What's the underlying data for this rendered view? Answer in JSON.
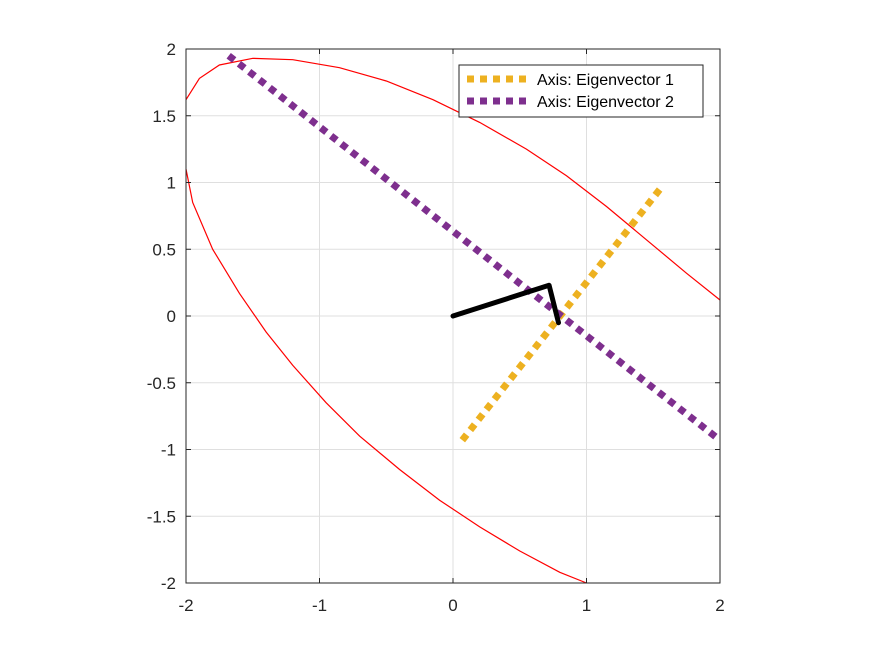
{
  "chart_data": {
    "type": "line",
    "title": "",
    "xlabel": "",
    "ylabel": "",
    "xlim": [
      -2,
      2
    ],
    "ylim": [
      -2,
      2
    ],
    "xticks": [
      -2,
      -1,
      0,
      1,
      2
    ],
    "yticks": [
      -2,
      -1.5,
      -1,
      -0.5,
      0,
      0.5,
      1,
      1.5,
      2
    ],
    "xtick_labels": [
      "-2",
      "-1",
      "0",
      "1",
      "2"
    ],
    "ytick_labels": [
      "-2",
      "-1.5",
      "-1",
      "-0.5",
      "0",
      "0.5",
      "1",
      "1.5",
      "2"
    ],
    "grid": true,
    "legend_position": "top-right",
    "series": [
      {
        "name": "Axis: Eigenvector 1",
        "color": "#EDB120",
        "style": "dotted-thick",
        "x": [
          0.07,
          1.55
        ],
        "y": [
          -0.93,
          0.95
        ]
      },
      {
        "name": "Axis: Eigenvector 2",
        "color": "#7E2F8E",
        "style": "dotted-thick",
        "x": [
          -1.68,
          2.0
        ],
        "y": [
          1.95,
          -0.93
        ]
      },
      {
        "color": "#000000",
        "style": "solid-thick",
        "x": [
          0,
          0.72,
          0.79
        ],
        "y": [
          0,
          0.23,
          -0.05
        ]
      },
      {
        "color": "#FF0000",
        "style": "thin",
        "x": [
          -2.0,
          -1.9,
          -1.75,
          -1.5,
          -1.2,
          -0.85,
          -0.5,
          -0.15,
          0.2,
          0.55,
          0.85,
          1.15,
          1.45,
          1.75,
          2.0
        ],
        "y": [
          1.62,
          1.78,
          1.88,
          1.93,
          1.92,
          1.86,
          1.76,
          1.62,
          1.45,
          1.25,
          1.05,
          0.82,
          0.57,
          0.32,
          0.12
        ]
      },
      {
        "color": "#FF0000",
        "style": "thin",
        "x": [
          -2.0,
          -1.95,
          -1.8,
          -1.6,
          -1.4,
          -1.2,
          -0.95,
          -0.7,
          -0.4,
          -0.1,
          0.2,
          0.5,
          0.8,
          1.0
        ],
        "y": [
          1.1,
          0.85,
          0.5,
          0.17,
          -0.12,
          -0.37,
          -0.65,
          -0.9,
          -1.15,
          -1.38,
          -1.58,
          -1.76,
          -1.92,
          -2.0
        ]
      }
    ]
  }
}
